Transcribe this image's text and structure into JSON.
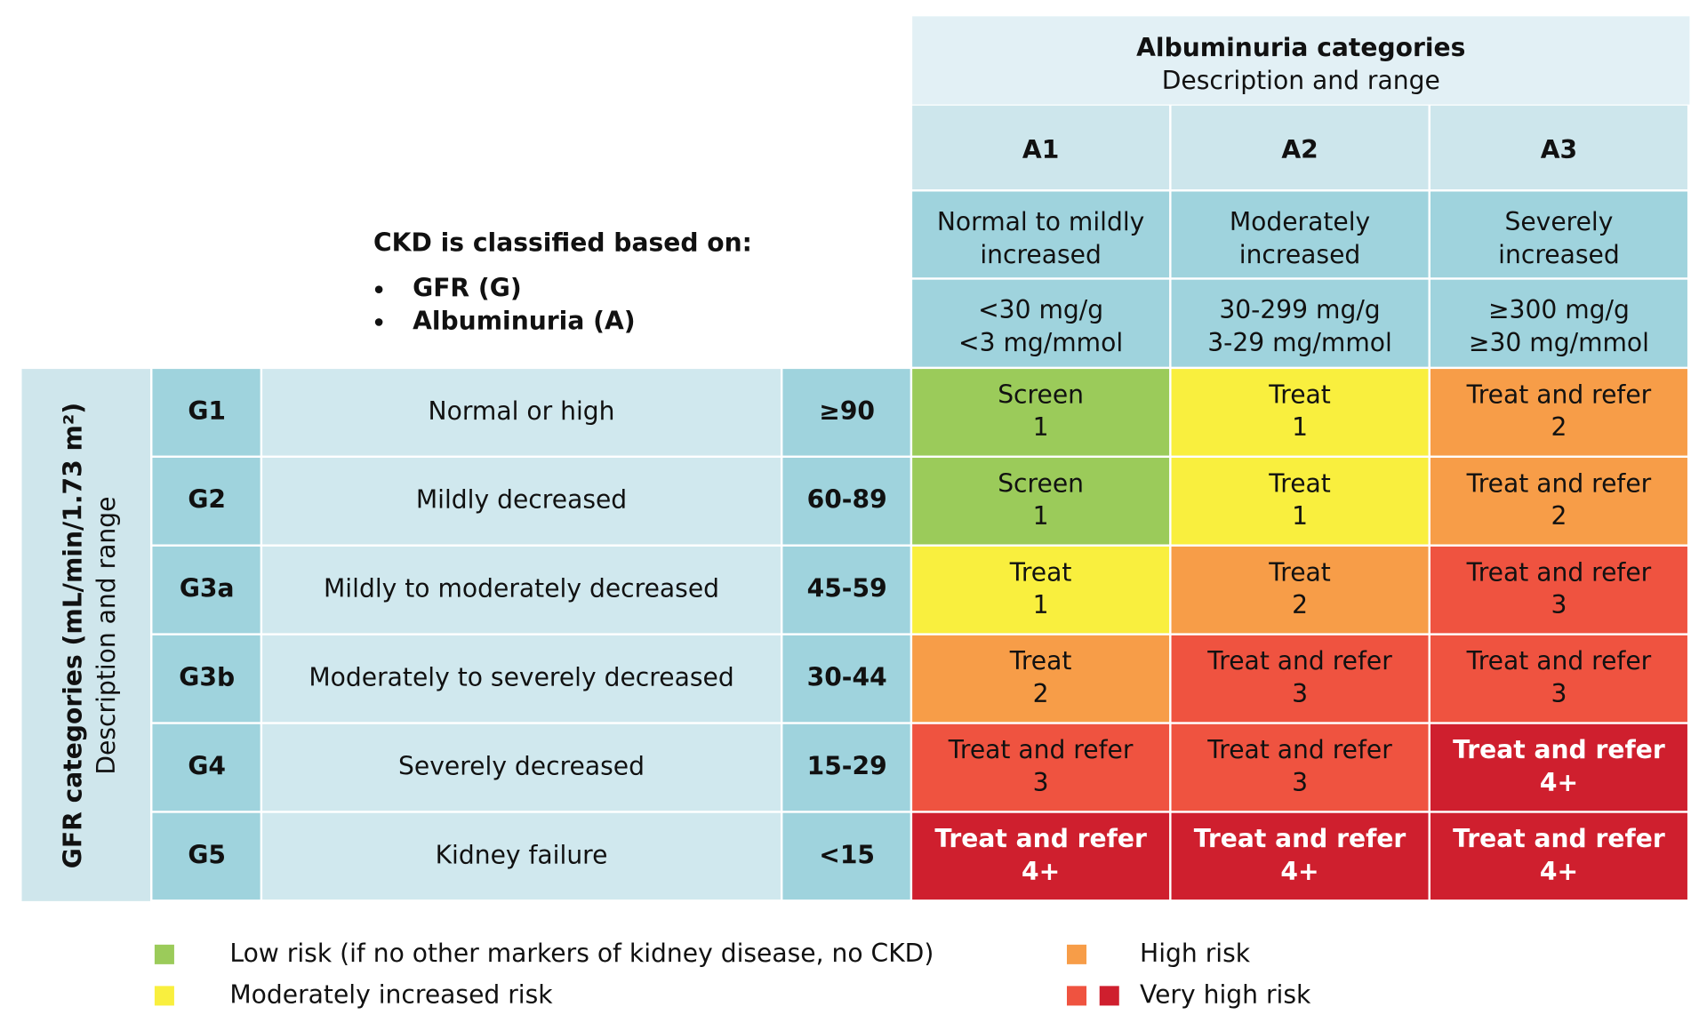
{
  "header": {
    "title": "Albuminuria categories",
    "subtitle": "Description and range"
  },
  "classification": {
    "title": "CKD is classified based on:",
    "items": [
      "GFR (G)",
      "Albuminuria (A)"
    ]
  },
  "side_label": {
    "title": "GFR categories (mL/min/1.73 m²)",
    "subtitle": "Description and range"
  },
  "columns": [
    {
      "code": "A1",
      "description": [
        "Normal to mildly",
        "increased"
      ],
      "range": [
        "<30 mg/g",
        "<3 mg/mmol"
      ]
    },
    {
      "code": "A2",
      "description": [
        "Moderately",
        "increased"
      ],
      "range": [
        "30-299 mg/g",
        "3-29 mg/mmol"
      ]
    },
    {
      "code": "A3",
      "description": [
        "Severely",
        "increased"
      ],
      "range": [
        "≥300 mg/g",
        "≥30 mg/mmol"
      ]
    }
  ],
  "rows": [
    {
      "code": "G1",
      "description": "Normal or high",
      "range": "≥90",
      "cells": [
        {
          "action": "Screen",
          "level": "1",
          "color": "#9bcb5a",
          "text_color": "#111"
        },
        {
          "action": "Treat",
          "level": "1",
          "color": "#f9ef3e",
          "text_color": "#111"
        },
        {
          "action": "Treat and refer",
          "level": "2",
          "color": "#f79d48",
          "text_color": "#111"
        }
      ]
    },
    {
      "code": "G2",
      "description": "Mildly decreased",
      "range": "60-89",
      "cells": [
        {
          "action": "Screen",
          "level": "1",
          "color": "#9bcb5a",
          "text_color": "#111"
        },
        {
          "action": "Treat",
          "level": "1",
          "color": "#f9ef3e",
          "text_color": "#111"
        },
        {
          "action": "Treat and refer",
          "level": "2",
          "color": "#f79d48",
          "text_color": "#111"
        }
      ]
    },
    {
      "code": "G3a",
      "description": "Mildly to moderately decreased",
      "range": "45-59",
      "cells": [
        {
          "action": "Treat",
          "level": "1",
          "color": "#f9ef3e",
          "text_color": "#111"
        },
        {
          "action": "Treat",
          "level": "2",
          "color": "#f79d48",
          "text_color": "#111"
        },
        {
          "action": "Treat and refer",
          "level": "3",
          "color": "#ef5340",
          "text_color": "#111"
        }
      ]
    },
    {
      "code": "G3b",
      "description": "Moderately to severely decreased",
      "range": "30-44",
      "cells": [
        {
          "action": "Treat",
          "level": "2",
          "color": "#f79d48",
          "text_color": "#111"
        },
        {
          "action": "Treat and refer",
          "level": "3",
          "color": "#ef5340",
          "text_color": "#111"
        },
        {
          "action": "Treat and refer",
          "level": "3",
          "color": "#ef5340",
          "text_color": "#111"
        }
      ]
    },
    {
      "code": "G4",
      "description": "Severely decreased",
      "range": "15-29",
      "cells": [
        {
          "action": "Treat and refer",
          "level": "3",
          "color": "#ef5340",
          "text_color": "#111"
        },
        {
          "action": "Treat and refer",
          "level": "3",
          "color": "#ef5340",
          "text_color": "#111"
        },
        {
          "action": "Treat and refer",
          "level": "4+",
          "color": "#cf1f2e",
          "text_color": "#fff"
        }
      ]
    },
    {
      "code": "G5",
      "description": "Kidney failure",
      "range": "<15",
      "cells": [
        {
          "action": "Treat and refer",
          "level": "4+",
          "color": "#cf1f2e",
          "text_color": "#fff"
        },
        {
          "action": "Treat and refer",
          "level": "4+",
          "color": "#cf1f2e",
          "text_color": "#fff"
        },
        {
          "action": "Treat and refer",
          "level": "4+",
          "color": "#cf1f2e",
          "text_color": "#fff"
        }
      ]
    }
  ],
  "legend": [
    {
      "label": "Low risk (if no other markers of kidney disease, no CKD)",
      "colors": [
        "#9bcb5a"
      ]
    },
    {
      "label": "Moderately increased risk",
      "colors": [
        "#f9ef3e"
      ]
    },
    {
      "label": "High risk",
      "colors": [
        "#f79d48"
      ]
    },
    {
      "label": "Very high risk",
      "colors": [
        "#ef5340",
        "#cf1f2e"
      ]
    }
  ]
}
